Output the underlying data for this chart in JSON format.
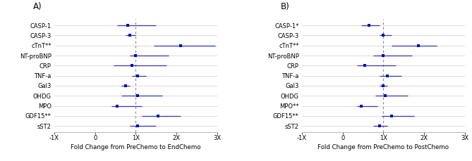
{
  "panel_A": {
    "title": "A)",
    "xlabel": "Fold Change from PreChemo to EndChemo",
    "labels": [
      "CASP-1",
      "CASP-3",
      "cTnT**",
      "NT-proBNP",
      "CRP",
      "TNF-a",
      "Gal3",
      "OHDG",
      "MPO",
      "GDF15**",
      "sST2"
    ],
    "centers": [
      0.8,
      0.85,
      2.1,
      1.0,
      0.9,
      1.05,
      0.75,
      1.05,
      0.55,
      1.55,
      1.05
    ],
    "xerr_low": [
      0.25,
      0.1,
      0.65,
      0.15,
      0.45,
      0.15,
      0.1,
      0.4,
      0.15,
      0.4,
      0.2
    ],
    "xerr_high": [
      0.7,
      0.15,
      0.85,
      0.8,
      0.85,
      0.2,
      0.1,
      0.6,
      0.6,
      0.55,
      0.45
    ]
  },
  "panel_B": {
    "title": "B)",
    "xlabel": "Fold Change from PreChemo to PostChemo",
    "labels": [
      "CASP-1*",
      "CASP-3",
      "cTnT**",
      "NT-proBNP",
      "CRP",
      "TNF-a",
      "Gal3",
      "OHDG",
      "MPO**",
      "GDF15**",
      "sST2"
    ],
    "centers": [
      0.65,
      1.0,
      1.85,
      1.0,
      0.55,
      1.1,
      1.0,
      1.05,
      0.45,
      1.2,
      0.9
    ],
    "xerr_low": [
      0.2,
      0.1,
      0.65,
      0.25,
      0.2,
      0.2,
      0.1,
      0.25,
      0.1,
      0.25,
      0.15
    ],
    "xerr_high": [
      0.25,
      0.2,
      0.45,
      0.7,
      0.75,
      0.35,
      0.1,
      0.55,
      0.4,
      0.55,
      0.2
    ]
  },
  "xlim": [
    -1,
    3
  ],
  "xticks": [
    -1,
    0,
    1,
    2,
    3
  ],
  "xticklabels": [
    "-1X",
    "0",
    "1X",
    "2X",
    "3X"
  ],
  "vline_x": 1.0,
  "dot_color": "#0000bb",
  "line_color": "#3333bb",
  "bg_color": "#ffffff",
  "grid_color": "#cccccc",
  "spine_color": "#aaaaaa"
}
